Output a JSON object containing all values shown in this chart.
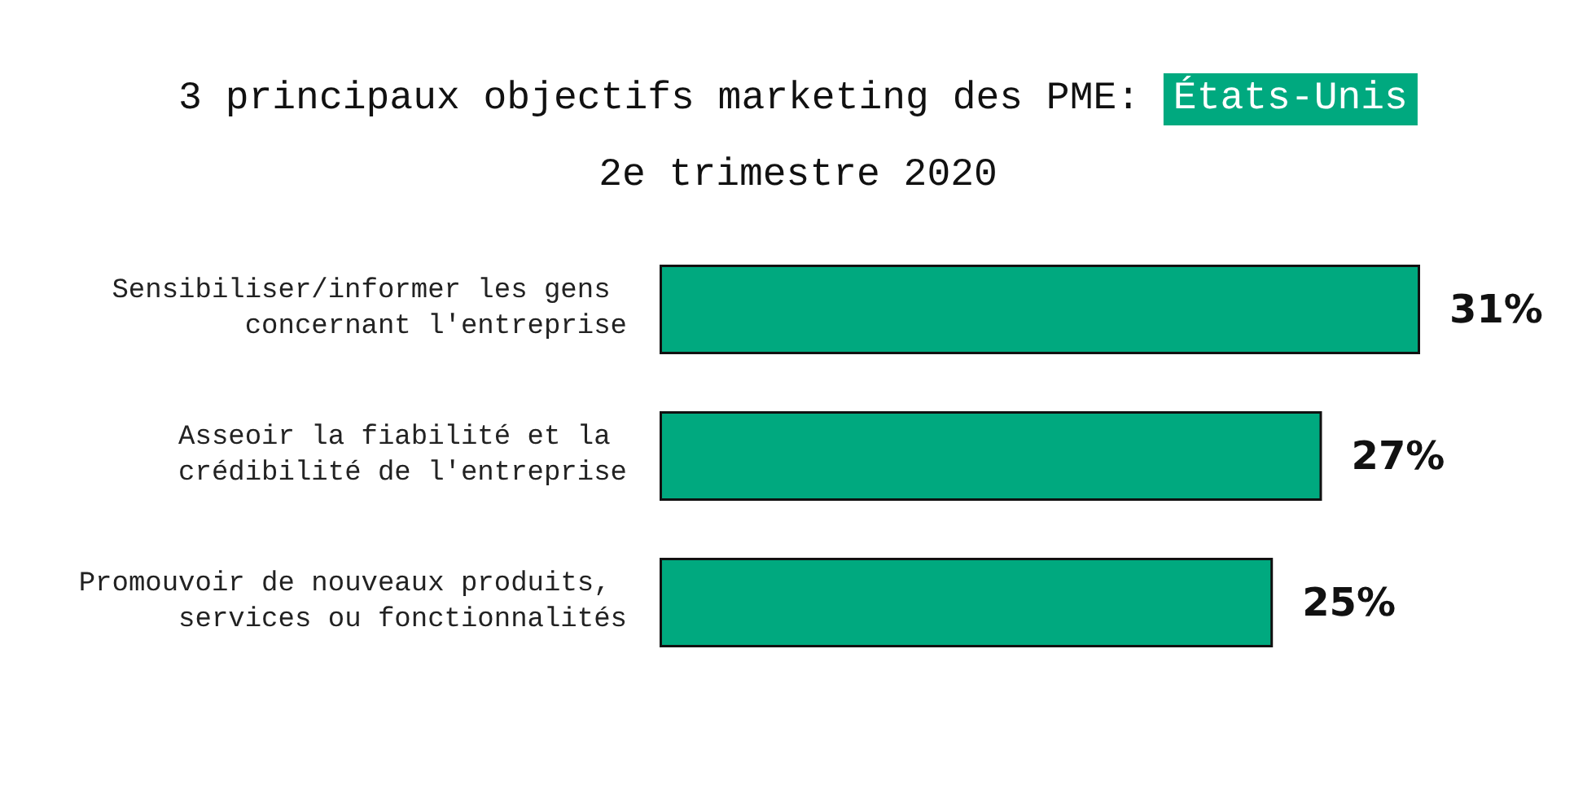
{
  "chart_data": {
    "type": "bar",
    "orientation": "horizontal",
    "title": "3 principaux objectifs marketing des PME: États-Unis",
    "subtitle": "2e trimestre 2020",
    "categories": [
      "Sensibiliser/informer les gens concernant l'entreprise",
      "Asseoir la fiabilité et la crédibilité de l'entreprise",
      "Promouvoir de nouveaux produits, services ou fonctionnalités"
    ],
    "values": [
      31,
      27,
      25
    ],
    "value_labels": [
      "31%",
      "27%",
      "25%"
    ],
    "color": "#00a97f",
    "tick_labels": "y"
  }
}
